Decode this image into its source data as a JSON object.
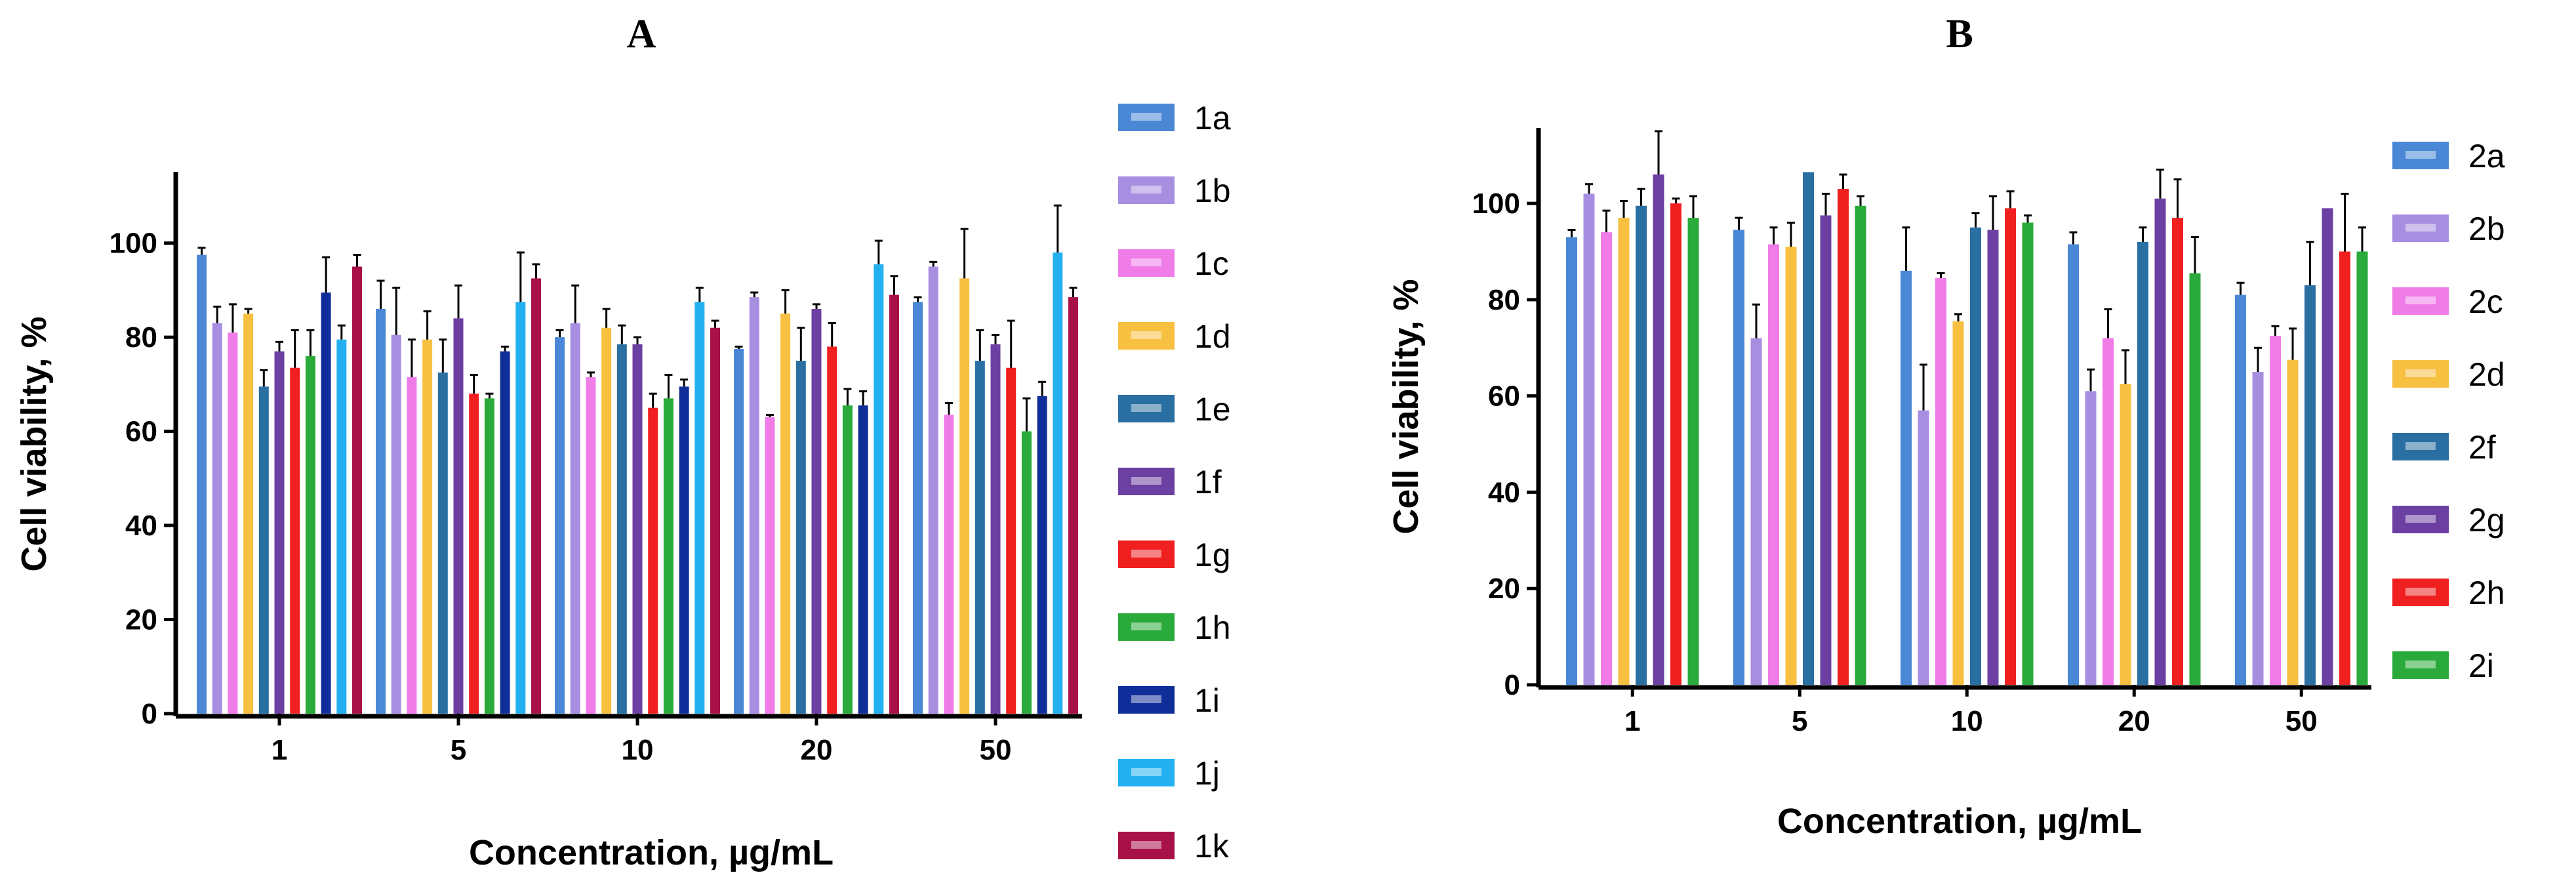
{
  "chart_data": [
    {
      "type": "bar",
      "panel_label": "A",
      "xlabel": "Concentration, µg/mL",
      "ylabel": "Cell viability, %",
      "categories": [
        "1",
        "5",
        "10",
        "20",
        "50"
      ],
      "ylim": [
        0,
        115
      ],
      "yticks": [
        "0",
        "20",
        "40",
        "60",
        "80",
        "100"
      ],
      "legend_position": "right",
      "series": [
        {
          "name": "1a",
          "color": "#4a88d6",
          "values": [
            97.5,
            86,
            80,
            77.5,
            87.5
          ],
          "errors": [
            1.5,
            6,
            1.5,
            0.5,
            1
          ]
        },
        {
          "name": "1b",
          "color": "#a78ee0",
          "values": [
            83,
            80.5,
            83,
            88.5,
            95
          ],
          "errors": [
            3.5,
            10,
            8,
            1,
            1
          ]
        },
        {
          "name": "1c",
          "color": "#f07ce8",
          "values": [
            81,
            71.5,
            71.5,
            63,
            63.5
          ],
          "errors": [
            6,
            8,
            1,
            0.5,
            2.5
          ]
        },
        {
          "name": "1d",
          "color": "#f7c040",
          "values": [
            85,
            79.5,
            82,
            85,
            92.5
          ],
          "errors": [
            1,
            6,
            4,
            5,
            10.5
          ]
        },
        {
          "name": "1e",
          "color": "#2a6fa2",
          "values": [
            69.5,
            72.5,
            78.5,
            75,
            75
          ],
          "errors": [
            3.5,
            7,
            4,
            7,
            6.5
          ]
        },
        {
          "name": "1f",
          "color": "#6c3fa2",
          "values": [
            77,
            84,
            78.5,
            86,
            78.5
          ],
          "errors": [
            2,
            7,
            1.5,
            1,
            2
          ]
        },
        {
          "name": "1g",
          "color": "#f02020",
          "values": [
            73.5,
            68,
            65,
            78,
            73.5
          ],
          "errors": [
            8,
            4,
            3,
            5,
            10
          ]
        },
        {
          "name": "1h",
          "color": "#2aaa3a",
          "values": [
            76,
            67,
            67,
            65.5,
            60
          ],
          "errors": [
            5.5,
            1,
            5,
            3.5,
            7
          ]
        },
        {
          "name": "1i",
          "color": "#102e9a",
          "values": [
            89.5,
            77,
            69.5,
            65.5,
            67.5
          ],
          "errors": [
            7.5,
            1,
            1.5,
            3,
            3
          ]
        },
        {
          "name": "1j",
          "color": "#22b0f0",
          "values": [
            79.5,
            87.5,
            87.5,
            95.5,
            98
          ],
          "errors": [
            3,
            10.5,
            3,
            5,
            10
          ]
        },
        {
          "name": "1k",
          "color": "#a81048",
          "values": [
            95,
            92.5,
            82,
            89,
            88.5
          ],
          "errors": [
            2.5,
            3,
            1.5,
            4,
            2
          ]
        }
      ]
    },
    {
      "type": "bar",
      "panel_label": "B",
      "xlabel": "Concentration, µg/mL",
      "ylabel": "Cell viability, %",
      "categories": [
        "1",
        "5",
        "10",
        "20",
        "50"
      ],
      "ylim": [
        0,
        115
      ],
      "yticks": [
        "0",
        "20",
        "40",
        "60",
        "80",
        "100"
      ],
      "legend_position": "right",
      "series": [
        {
          "name": "2a",
          "color": "#4a88d6",
          "values": [
            93,
            94.5,
            86,
            91.5,
            81
          ],
          "errors": [
            1.5,
            2.5,
            9,
            2.5,
            2.5
          ]
        },
        {
          "name": "2b",
          "color": "#a78ee0",
          "values": [
            102,
            72,
            57,
            61,
            65
          ],
          "errors": [
            2,
            7,
            9.5,
            4.5,
            5
          ]
        },
        {
          "name": "2c",
          "color": "#f07ce8",
          "values": [
            94,
            91.5,
            84.5,
            72,
            72.5
          ],
          "errors": [
            4.5,
            3.5,
            1,
            6,
            2
          ]
        },
        {
          "name": "2d",
          "color": "#f7c040",
          "values": [
            97,
            91,
            75.5,
            62.5,
            67.5
          ],
          "errors": [
            3.5,
            5,
            1.5,
            7,
            6.5
          ]
        },
        {
          "name": "2f",
          "color": "#2a6fa2",
          "values": [
            99.5,
            106.5,
            95,
            92,
            83
          ],
          "errors": [
            3.5,
            0,
            3,
            3,
            9
          ]
        },
        {
          "name": "2g",
          "color": "#6c3fa2",
          "values": [
            106,
            97.5,
            94.5,
            101,
            99
          ],
          "errors": [
            9,
            4.5,
            7,
            6,
            0
          ]
        },
        {
          "name": "2h",
          "color": "#f02020",
          "values": [
            100,
            103,
            99,
            97,
            90
          ],
          "errors": [
            1,
            3,
            3.5,
            8,
            12
          ]
        },
        {
          "name": "2i",
          "color": "#2aaa3a",
          "values": [
            97,
            99.5,
            96,
            85.5,
            90
          ],
          "errors": [
            4.5,
            2,
            1.5,
            7.5,
            5
          ]
        }
      ]
    }
  ]
}
